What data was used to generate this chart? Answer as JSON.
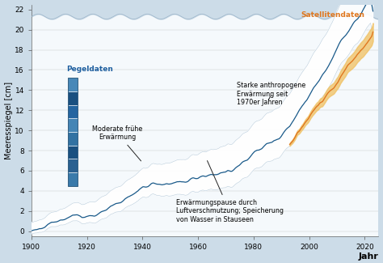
{
  "title": "",
  "xlabel": "Jahr",
  "ylabel": "Meeresspiegel [cm]",
  "xlim": [
    1900,
    2025
  ],
  "ylim": [
    -0.5,
    22.5
  ],
  "yticks": [
    0,
    2,
    4,
    6,
    8,
    10,
    12,
    14,
    16,
    18,
    20,
    22
  ],
  "xticks": [
    1900,
    1920,
    1940,
    1960,
    1980,
    2000,
    2020
  ],
  "bg_color": "#ccdce8",
  "main_line_color": "#1a5a8a",
  "satellite_color": "#e07820",
  "uncertainty_upper_color": "#dde8f2",
  "pegeldaten_label": "Pegeldaten",
  "satellitendaten_label": "Satellitendaten",
  "satellite_start_year": 1993,
  "annotation1_text": "Moderate frühe\nErwärmung",
  "annotation2_text": "Erwärmungspause durch\nLuftverschmutzung; Speicherung\nvon Wasser in Stauseen",
  "annotation3_text": "Starke anthropogene\nErwärmung seit\n1970er Jahren",
  "stripe_colors_dark": [
    "#1a4f7a",
    "#245f8a",
    "#1d5580",
    "#2a6595"
  ],
  "stripe_colors_light": [
    "#4080aa",
    "#5090b5",
    "#4888b0",
    "#3878a5"
  ]
}
